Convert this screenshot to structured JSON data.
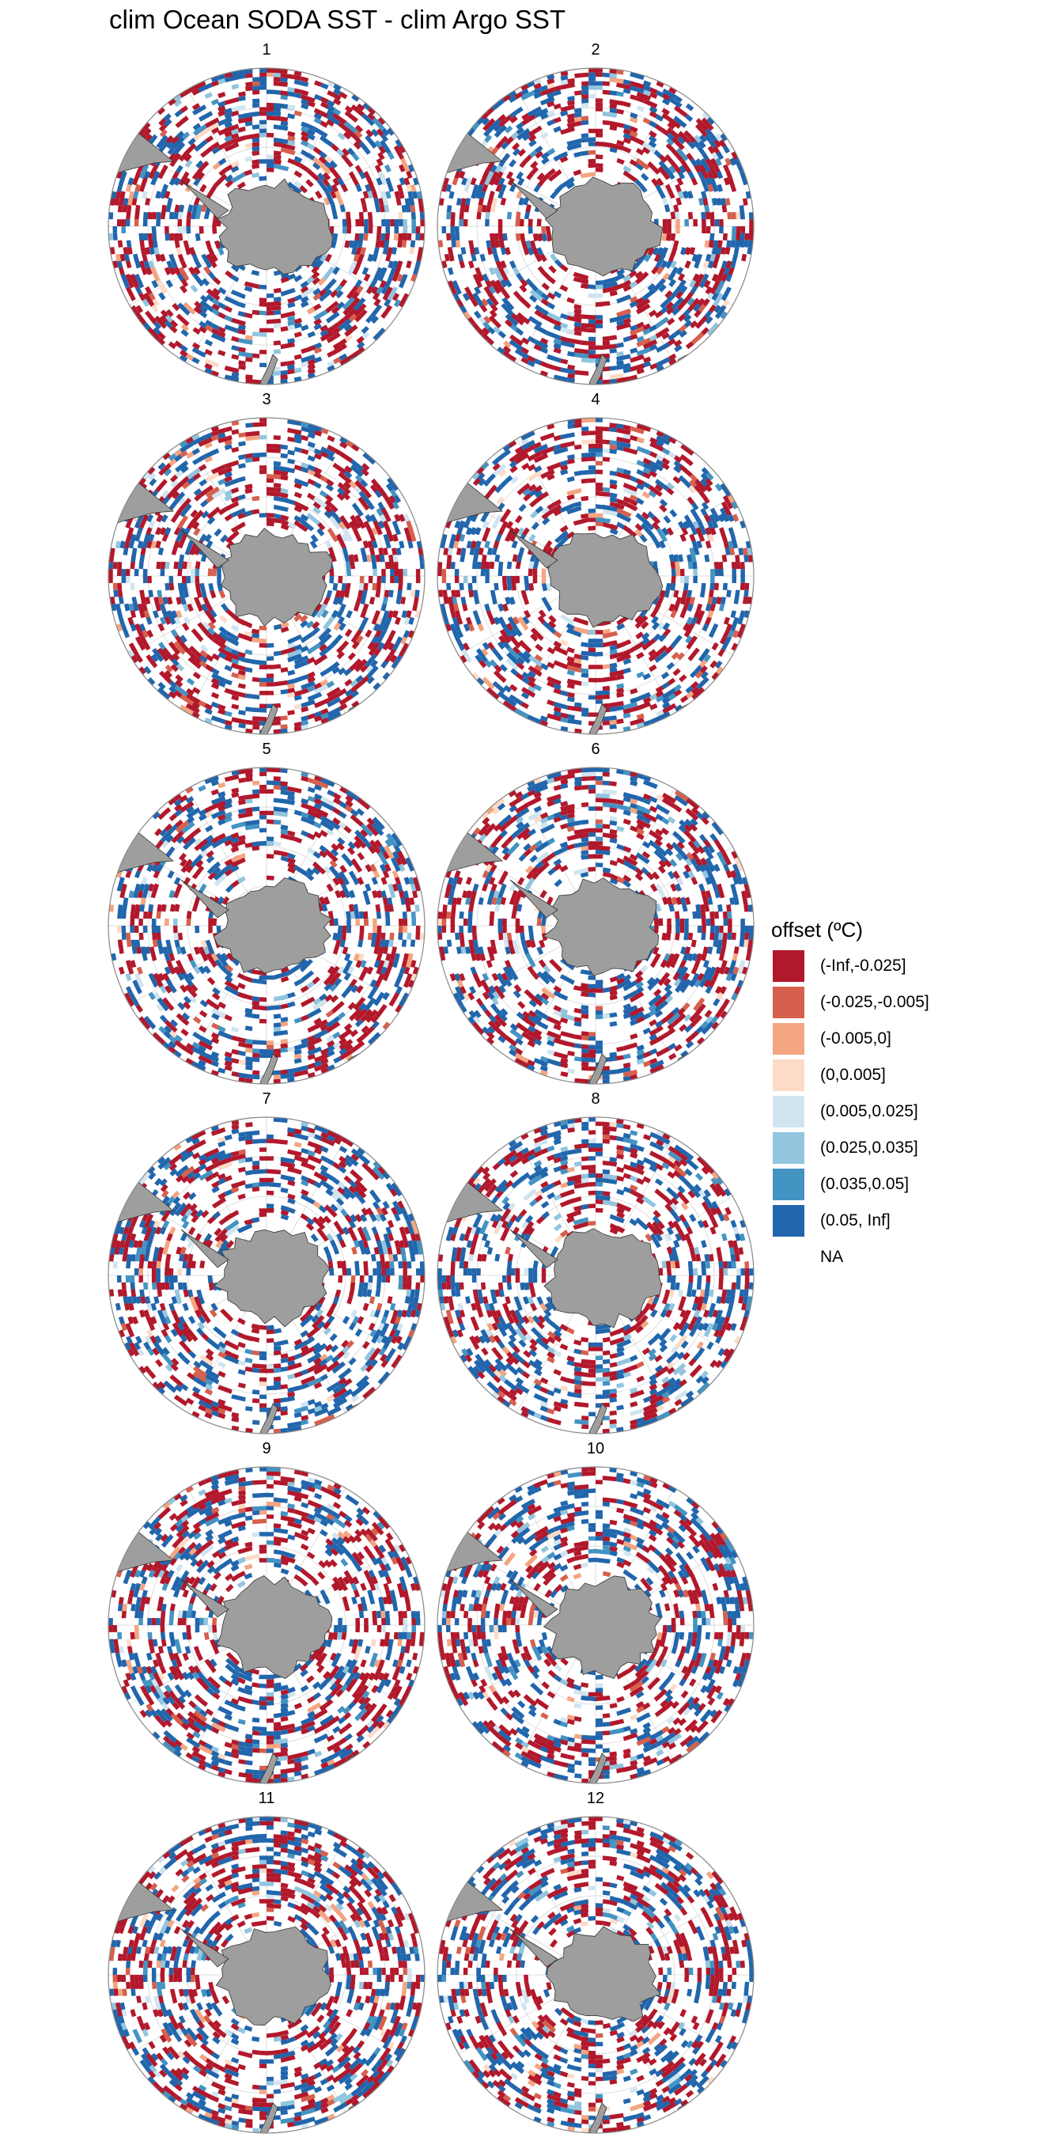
{
  "title": "clim Ocean SODA SST - clim Argo SST",
  "panels": [
    {
      "label": "1"
    },
    {
      "label": "2"
    },
    {
      "label": "3"
    },
    {
      "label": "4"
    },
    {
      "label": "5"
    },
    {
      "label": "6"
    },
    {
      "label": "7"
    },
    {
      "label": "8"
    },
    {
      "label": "9"
    },
    {
      "label": "10"
    },
    {
      "label": "11"
    },
    {
      "label": "12"
    }
  ],
  "legend": {
    "title": "offset (ºC)",
    "items": [
      {
        "label": "(-Inf,-0.025]",
        "color": "#b2182b"
      },
      {
        "label": "(-0.025,-0.005]",
        "color": "#d6604d"
      },
      {
        "label": "(-0.005,0]",
        "color": "#f4a582"
      },
      {
        "label": "(0,0.005]",
        "color": "#fddbc7"
      },
      {
        "label": "(0.005,0.025]",
        "color": "#d1e5f0"
      },
      {
        "label": "(0.025,0.035]",
        "color": "#92c5de"
      },
      {
        "label": "(0.035,0.05]",
        "color": "#4393c3"
      },
      {
        "label": "(0.05, Inf]",
        "color": "#2166ac"
      },
      {
        "label": "NA",
        "color": ""
      }
    ]
  },
  "colors": {
    "land": "#9e9e9e",
    "land_outline": "#333333",
    "graticule": "#dddddd",
    "boundary": "#888888"
  }
}
